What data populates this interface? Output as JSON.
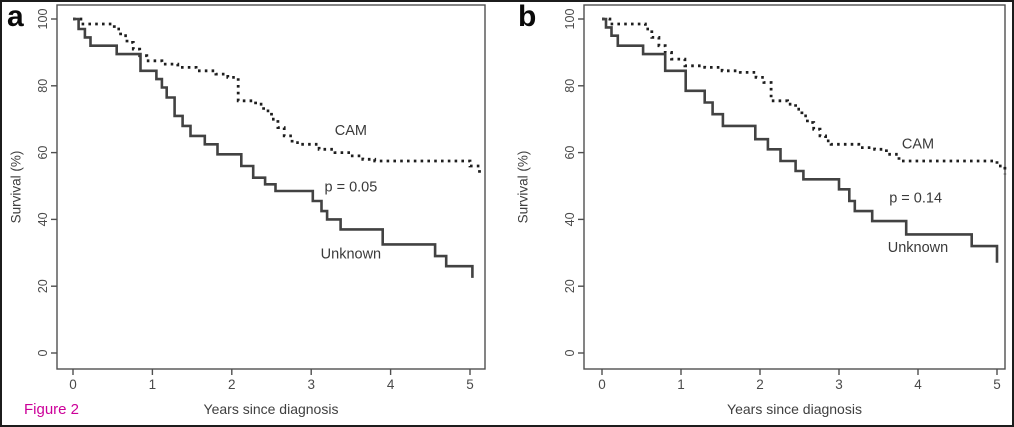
{
  "figure": {
    "caption": "Figure 2",
    "caption_color": "#cc0099",
    "background": "#ffffff",
    "border_color": "#1c1c1c",
    "solid_curve_color": "#424242",
    "dashed_curve_color": "#1e1e1e",
    "axis_color": "#4f4f4f",
    "tick_label_color": "#4a4a4a"
  },
  "chart_data": [
    {
      "panel_label": "a",
      "type": "line",
      "subtype": "kaplan-meier-step",
      "title": "",
      "xlabel": "Years since diagnosis",
      "ylabel": "Survival (%)",
      "xlim": [
        -0.2,
        5.2
      ],
      "ylim": [
        -4,
        104
      ],
      "xticks": [
        0,
        1,
        2,
        3,
        4,
        5
      ],
      "yticks": [
        0,
        20,
        40,
        60,
        80,
        100
      ],
      "grid": false,
      "legend_position": "inline-annotations",
      "p_value": "p = 0.05",
      "series": [
        {
          "name": "CAM",
          "style": "dashed",
          "step_points": [
            [
              0,
              100
            ],
            [
              0.1,
              98.5
            ],
            [
              0.52,
              97
            ],
            [
              0.6,
              95
            ],
            [
              0.68,
              93
            ],
            [
              0.76,
              91
            ],
            [
              0.84,
              89
            ],
            [
              0.93,
              87.5
            ],
            [
              1.12,
              86.5
            ],
            [
              1.32,
              85.5
            ],
            [
              1.55,
              84.5
            ],
            [
              1.8,
              83.5
            ],
            [
              1.95,
              82.5
            ],
            [
              2.08,
              75.5
            ],
            [
              2.3,
              74.5
            ],
            [
              2.4,
              72.5
            ],
            [
              2.5,
              70
            ],
            [
              2.58,
              67.5
            ],
            [
              2.66,
              65
            ],
            [
              2.76,
              63
            ],
            [
              2.86,
              62.5
            ],
            [
              3.1,
              61
            ],
            [
              3.3,
              60
            ],
            [
              3.5,
              59
            ],
            [
              3.65,
              58
            ],
            [
              3.8,
              57.5
            ],
            [
              5.0,
              56
            ],
            [
              5.12,
              53.5
            ]
          ]
        },
        {
          "name": "Unknown",
          "style": "solid",
          "step_points": [
            [
              0,
              100
            ],
            [
              0.07,
              97
            ],
            [
              0.15,
              94.5
            ],
            [
              0.22,
              92
            ],
            [
              0.55,
              89.5
            ],
            [
              0.85,
              84.5
            ],
            [
              1.05,
              82
            ],
            [
              1.12,
              79.5
            ],
            [
              1.18,
              76.5
            ],
            [
              1.28,
              71
            ],
            [
              1.38,
              68
            ],
            [
              1.48,
              65
            ],
            [
              1.66,
              62.5
            ],
            [
              1.82,
              59.5
            ],
            [
              2.12,
              56
            ],
            [
              2.27,
              52.5
            ],
            [
              2.42,
              50.5
            ],
            [
              2.55,
              48.5
            ],
            [
              3.02,
              45.5
            ],
            [
              3.13,
              42.5
            ],
            [
              3.2,
              40
            ],
            [
              3.37,
              37
            ],
            [
              3.9,
              32.5
            ],
            [
              4.56,
              29
            ],
            [
              4.7,
              26
            ],
            [
              5.03,
              22.5
            ]
          ]
        }
      ],
      "annotations": [
        {
          "text": "CAM",
          "x": 3.5,
          "y": 66.5
        },
        {
          "text": "p = 0.05",
          "x": 3.5,
          "y": 49.5
        },
        {
          "text": "Unknown",
          "x": 3.5,
          "y": 29.5
        }
      ]
    },
    {
      "panel_label": "b",
      "type": "line",
      "subtype": "kaplan-meier-step",
      "title": "",
      "xlabel": "Years since diagnosis",
      "ylabel": "Survival (%)",
      "xlim": [
        -0.2,
        5.2
      ],
      "ylim": [
        -4,
        104
      ],
      "xticks": [
        0,
        1,
        2,
        3,
        4,
        5
      ],
      "yticks": [
        0,
        20,
        40,
        60,
        80,
        100
      ],
      "grid": false,
      "legend_position": "inline-annotations",
      "p_value": "p = 0.14",
      "series": [
        {
          "name": "CAM",
          "style": "dashed",
          "step_points": [
            [
              0,
              100
            ],
            [
              0.1,
              98.5
            ],
            [
              0.55,
              97
            ],
            [
              0.63,
              94.5
            ],
            [
              0.72,
              92
            ],
            [
              0.8,
              90
            ],
            [
              0.88,
              88
            ],
            [
              1.05,
              86
            ],
            [
              1.3,
              85.5
            ],
            [
              1.52,
              84.5
            ],
            [
              1.75,
              84
            ],
            [
              1.95,
              82.5
            ],
            [
              2.05,
              81
            ],
            [
              2.14,
              75.5
            ],
            [
              2.35,
              74.5
            ],
            [
              2.45,
              73
            ],
            [
              2.53,
              71
            ],
            [
              2.6,
              69
            ],
            [
              2.68,
              67
            ],
            [
              2.76,
              65
            ],
            [
              2.83,
              63.5
            ],
            [
              2.9,
              62.5
            ],
            [
              3.25,
              61.5
            ],
            [
              3.45,
              61
            ],
            [
              3.6,
              59.5
            ],
            [
              3.76,
              57.5
            ],
            [
              5.0,
              56
            ],
            [
              5.1,
              53.5
            ]
          ]
        },
        {
          "name": "Unknown",
          "style": "solid",
          "step_points": [
            [
              0,
              100
            ],
            [
              0.05,
              97.5
            ],
            [
              0.12,
              95
            ],
            [
              0.2,
              92
            ],
            [
              0.52,
              89.5
            ],
            [
              0.8,
              84.5
            ],
            [
              1.06,
              78.5
            ],
            [
              1.3,
              75
            ],
            [
              1.4,
              71.5
            ],
            [
              1.53,
              68
            ],
            [
              1.94,
              64
            ],
            [
              2.1,
              61
            ],
            [
              2.26,
              57.5
            ],
            [
              2.45,
              54.5
            ],
            [
              2.55,
              52
            ],
            [
              3.0,
              49
            ],
            [
              3.13,
              45.5
            ],
            [
              3.2,
              42.5
            ],
            [
              3.42,
              39.5
            ],
            [
              3.85,
              35.5
            ],
            [
              4.68,
              32
            ],
            [
              5.0,
              27
            ]
          ]
        }
      ],
      "annotations": [
        {
          "text": "CAM",
          "x": 4.0,
          "y": 62.5
        },
        {
          "text": "p = 0.14",
          "x": 3.97,
          "y": 46.3
        },
        {
          "text": "Unknown",
          "x": 4.0,
          "y": 31.5
        }
      ]
    }
  ]
}
